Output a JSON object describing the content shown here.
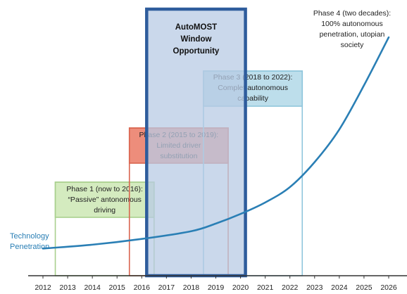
{
  "chart_data": {
    "type": "line",
    "x_range": [
      2012,
      2026
    ],
    "x_ticks": [
      "2012",
      "2013",
      "2014",
      "2015",
      "2016",
      "2017",
      "2018",
      "2019",
      "2020",
      "2021",
      "2022",
      "2023",
      "2024",
      "2025",
      "2026"
    ],
    "grid": false,
    "series": [
      {
        "name": "Technology Penetration",
        "color": "#2a7fb5",
        "points": [
          {
            "x": 2012,
            "y": 5
          },
          {
            "x": 2014,
            "y": 7
          },
          {
            "x": 2016,
            "y": 10
          },
          {
            "x": 2018,
            "y": 14
          },
          {
            "x": 2019,
            "y": 18
          },
          {
            "x": 2020,
            "y": 23
          },
          {
            "x": 2021,
            "y": 29
          },
          {
            "x": 2022,
            "y": 37
          },
          {
            "x": 2023,
            "y": 50
          },
          {
            "x": 2024,
            "y": 67
          },
          {
            "x": 2025,
            "y": 90
          },
          {
            "x": 2026,
            "y": 115
          }
        ]
      }
    ],
    "phases": [
      {
        "name": "Phase 1",
        "label_lines": [
          "Phase 1 (now to 2016):",
          "“Passive” antonomous",
          "driving"
        ],
        "x_start": 2012.5,
        "x_end": 2016.5,
        "fill": "#cce8b4",
        "border": "#a9d08e"
      },
      {
        "name": "Phase 2",
        "label_lines": [
          "Phase 2 (2015 to 2019):",
          "Limited driver",
          "substitution"
        ],
        "x_start": 2015.5,
        "x_end": 2019.5,
        "fill": "#e8705a",
        "border": "#d9654f"
      },
      {
        "name": "Phase 3",
        "label_lines": [
          "Phase 3 (2018 to 2022):",
          "Complet autonomous",
          "capability"
        ],
        "x_start": 2018.5,
        "x_end": 2022.5,
        "fill": "#acd6e6",
        "border": "#8fc6dc"
      }
    ],
    "phase4_label_lines": [
      "Phase 4 (two decades):",
      "100% autonomous",
      "penetration, utopian",
      "society"
    ],
    "window": {
      "label_lines": [
        "AutoMOST",
        "Window",
        "Opportunity"
      ],
      "x_start": 2016.2,
      "x_end": 2020.2,
      "fill": "#b8cbe4",
      "border": "#2e5c9c"
    },
    "ylabel_lines": [
      "Technology",
      "Penetration"
    ]
  }
}
